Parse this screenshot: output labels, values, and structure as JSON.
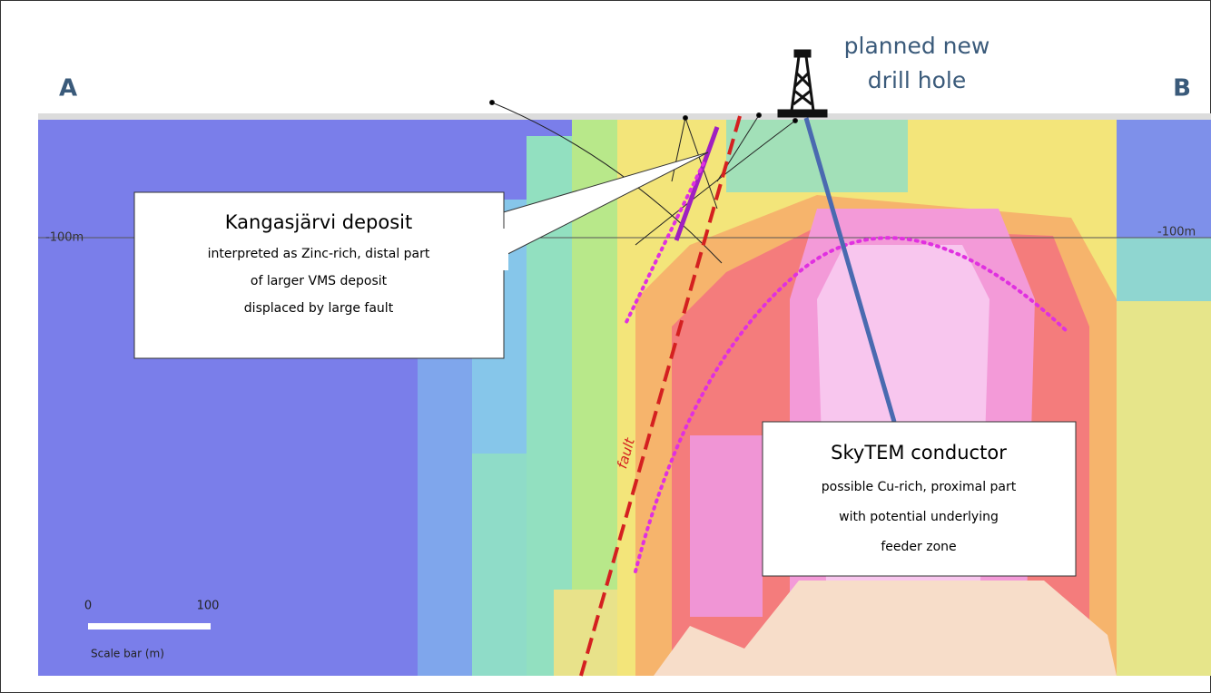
{
  "section": {
    "left_label": "A",
    "right_label": "B",
    "depth_label_left": "-100m",
    "depth_label_right": "-100m"
  },
  "drill_hole": {
    "label_lines": [
      "planned new",
      "drill hole"
    ]
  },
  "callouts": [
    {
      "title": "Kangasjärvi deposit",
      "lines": [
        "interpreted as Zinc-rich, distal part",
        "of larger VMS deposit",
        "displaced by large fault"
      ]
    },
    {
      "title": "SkyTEM conductor",
      "lines": [
        "possible Cu-rich, proximal part",
        "with potential underlying",
        "feeder zone"
      ]
    }
  ],
  "fault_label": "fault",
  "scale_bar": {
    "tick_labels": [
      "0",
      "100"
    ],
    "caption": "Scale bar (m)"
  }
}
